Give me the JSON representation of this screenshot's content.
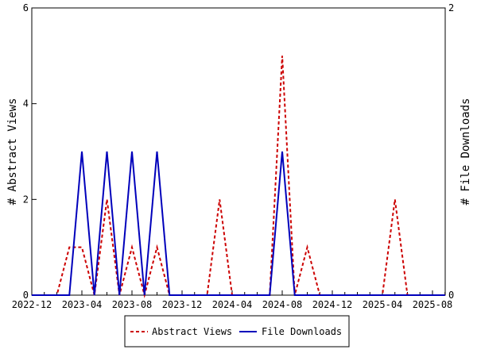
{
  "chart_data": {
    "type": "line",
    "title": "",
    "xlabel": "",
    "ylabel": "# Abstract Views",
    "y2label": "# File Downloads",
    "ylim": [
      0,
      6
    ],
    "y2lim": [
      0,
      2
    ],
    "yticks": [
      "0",
      "2",
      "4",
      "6"
    ],
    "y2ticks": [
      "0",
      "2"
    ],
    "xtick_labels": [
      "2022-12",
      "2023-04",
      "2023-08",
      "2023-12",
      "2024-04",
      "2024-08",
      "2024-12",
      "2025-04",
      "2025-08"
    ],
    "x": [
      "2022-12",
      "2023-01",
      "2023-02",
      "2023-03",
      "2023-04",
      "2023-05",
      "2023-06",
      "2023-07",
      "2023-08",
      "2023-09",
      "2023-10",
      "2023-11",
      "2023-12",
      "2024-01",
      "2024-02",
      "2024-03",
      "2024-04",
      "2024-05",
      "2024-06",
      "2024-07",
      "2024-08",
      "2024-09",
      "2024-10",
      "2024-11",
      "2024-12",
      "2025-01",
      "2025-02",
      "2025-03",
      "2025-04",
      "2025-05",
      "2025-06",
      "2025-07",
      "2025-08",
      "2025-09"
    ],
    "series": [
      {
        "name": "Abstract Views",
        "axis": "left",
        "color": "#cc0000",
        "dash": true,
        "values": [
          0,
          0,
          0,
          1,
          1,
          0,
          2,
          0,
          1,
          0,
          1,
          0,
          0,
          0,
          0,
          2,
          0,
          0,
          0,
          0,
          5,
          0,
          1,
          0,
          0,
          0,
          0,
          0,
          0,
          2,
          0,
          0,
          0,
          0
        ]
      },
      {
        "name": "File Downloads",
        "axis": "right",
        "color": "#0000bb",
        "dash": false,
        "values": [
          0,
          0,
          0,
          0,
          1,
          0,
          1,
          0,
          1,
          0,
          1,
          0,
          0,
          0,
          0,
          0,
          0,
          0,
          0,
          0,
          1,
          0,
          0,
          0,
          0,
          0,
          0,
          0,
          0,
          0,
          0,
          0,
          0,
          0
        ]
      }
    ],
    "legend": "bottom-center"
  }
}
